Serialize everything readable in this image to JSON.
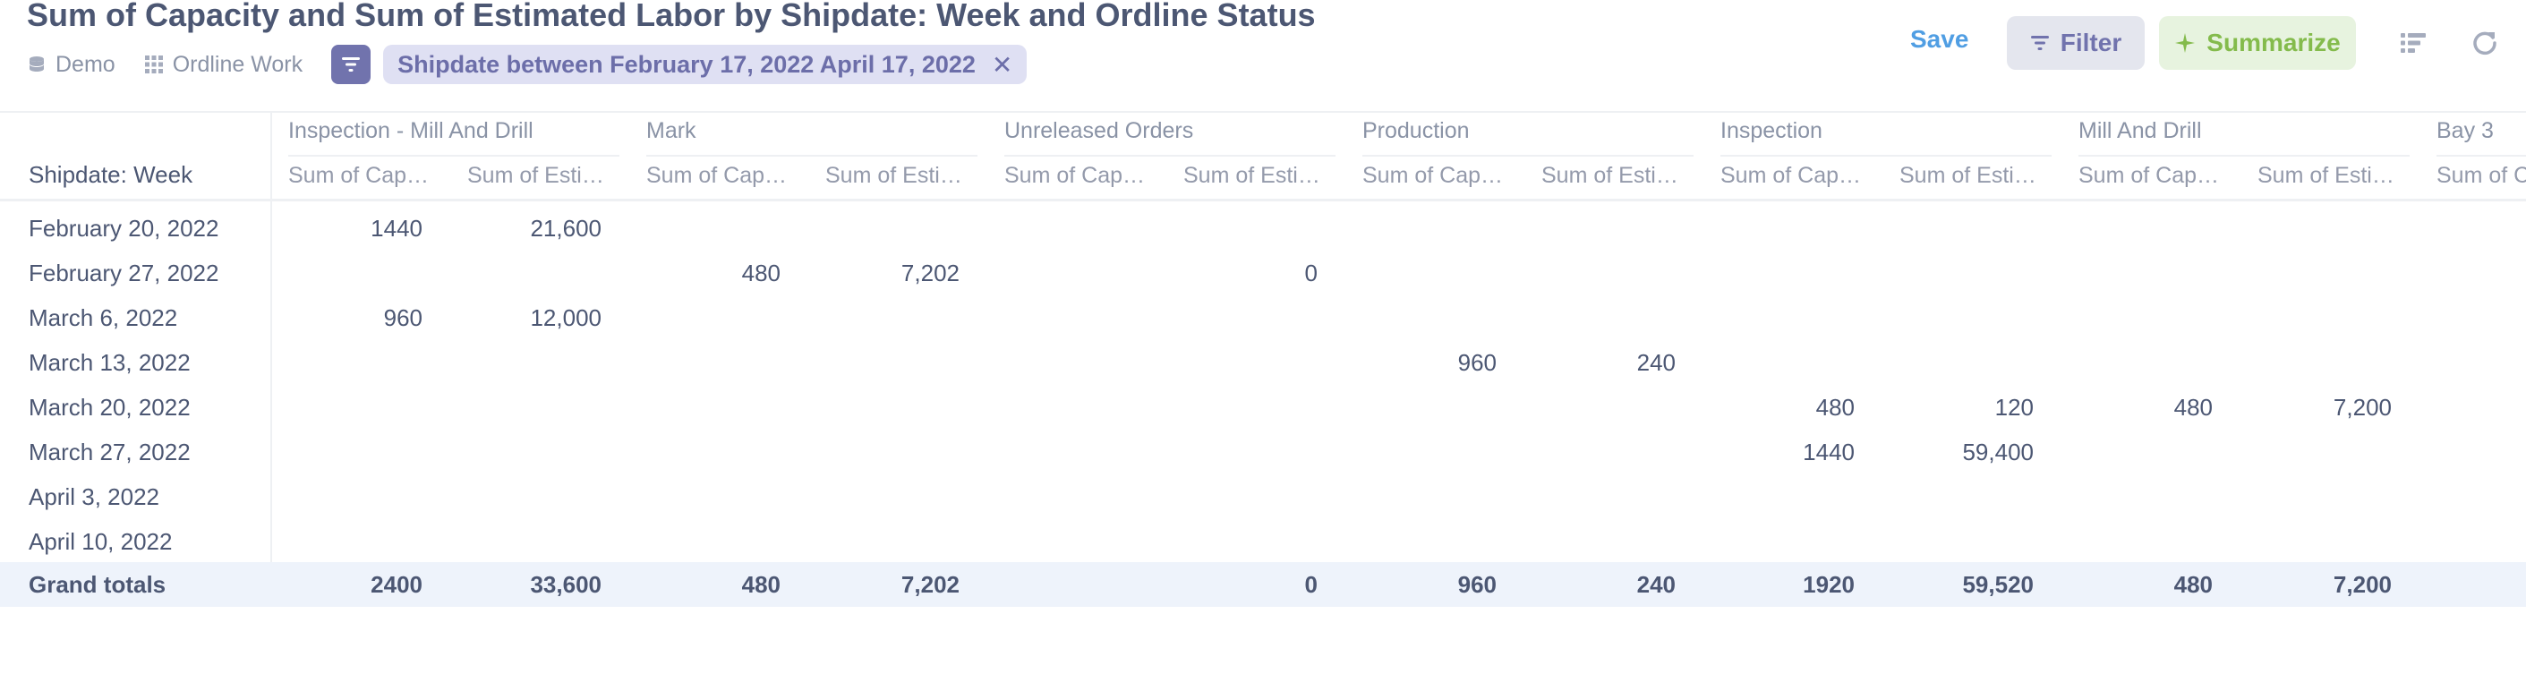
{
  "question": {
    "title": "Sum of Capacity and Sum of Estimated Labor by Shipdate: Week and Ordline Status",
    "breadcrumbs": {
      "database": "Demo",
      "table": "Ordline Work"
    },
    "filter_pill": "Shipdate between February 17, 2022 April 17, 2022",
    "filter_remove": "✕"
  },
  "toolbar": {
    "save": "Save",
    "filter": "Filter",
    "summarize": "Summarize"
  },
  "pivot": {
    "row_header": "Shipdate: Week",
    "groups": [
      "Inspection - Mill And Drill",
      "Mark",
      "Unreleased Orders",
      "Production",
      "Inspection",
      "Mill And Drill",
      "Bay 3"
    ],
    "subheaders": [
      "Sum of Capac…",
      "Sum of Estim…"
    ],
    "rows": [
      {
        "label": "February 20, 2022",
        "cells": [
          "1440",
          "21,600",
          "",
          "",
          "",
          "",
          "",
          "",
          "",
          "",
          "",
          "",
          "",
          ""
        ]
      },
      {
        "label": "February 27, 2022",
        "cells": [
          "",
          "",
          "480",
          "7,202",
          "",
          "0",
          "",
          "",
          "",
          "",
          "",
          "",
          "",
          ""
        ]
      },
      {
        "label": "March 6, 2022",
        "cells": [
          "960",
          "12,000",
          "",
          "",
          "",
          "",
          "",
          "",
          "",
          "",
          "",
          "",
          "",
          ""
        ]
      },
      {
        "label": "March 13, 2022",
        "cells": [
          "",
          "",
          "",
          "",
          "",
          "",
          "960",
          "240",
          "",
          "",
          "",
          "",
          "",
          ""
        ]
      },
      {
        "label": "March 20, 2022",
        "cells": [
          "",
          "",
          "",
          "",
          "",
          "",
          "",
          "",
          "480",
          "120",
          "480",
          "7,200",
          "",
          ""
        ]
      },
      {
        "label": "March 27, 2022",
        "cells": [
          "",
          "",
          "",
          "",
          "",
          "",
          "",
          "",
          "1440",
          "59,400",
          "",
          "",
          "",
          ""
        ]
      },
      {
        "label": "April 3, 2022",
        "cells": [
          "",
          "",
          "",
          "",
          "",
          "",
          "",
          "",
          "",
          "",
          "",
          "",
          "",
          ""
        ]
      },
      {
        "label": "April 10, 2022",
        "cells": [
          "",
          "",
          "",
          "",
          "",
          "",
          "",
          "",
          "",
          "",
          "",
          "",
          "",
          ""
        ]
      }
    ],
    "totals": {
      "label": "Grand totals",
      "cells": [
        "2400",
        "33,600",
        "480",
        "7,202",
        "",
        "0",
        "960",
        "240",
        "1920",
        "59,520",
        "480",
        "7,200",
        "",
        ""
      ]
    }
  }
}
